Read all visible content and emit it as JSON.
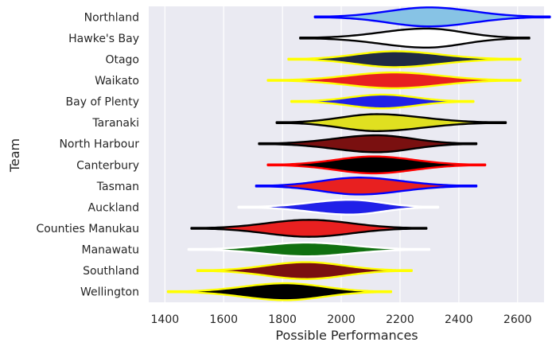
{
  "chart_data": {
    "type": "violin",
    "title": "",
    "xlabel": "Possible Performances",
    "ylabel": "Team",
    "xlim": [
      1345,
      2690
    ],
    "xticks": [
      1400,
      1600,
      1800,
      2000,
      2200,
      2400,
      2600
    ],
    "grid": true,
    "background_color": "#eaeaf2",
    "categories": [
      "Northland",
      "Hawke's Bay",
      "Otago",
      "Waikato",
      "Bay of Plenty",
      "Taranaki",
      "North Harbour",
      "Canterbury",
      "Tasman",
      "Auckland",
      "Counties Manukau",
      "Manawatu",
      "Southland",
      "Wellington"
    ],
    "series": [
      {
        "team": "Northland",
        "min": 1910,
        "max": 2710,
        "center": 2300,
        "width": 0.9,
        "fill": "#87c3e5",
        "edge": "#0000ff"
      },
      {
        "team": "Hawke's Bay",
        "min": 1860,
        "max": 2640,
        "center": 2290,
        "width": 0.9,
        "fill": "#ffffff",
        "edge": "#000000"
      },
      {
        "team": "Otago",
        "min": 1820,
        "max": 2610,
        "center": 2180,
        "width": 0.75,
        "fill": "#1f2a44",
        "edge": "#ffff00"
      },
      {
        "team": "Waikato",
        "min": 1750,
        "max": 2610,
        "center": 2180,
        "width": 0.75,
        "fill": "#e82020",
        "edge": "#ffff00"
      },
      {
        "team": "Bay of Plenty",
        "min": 1830,
        "max": 2450,
        "center": 2140,
        "width": 0.65,
        "fill": "#2020e8",
        "edge": "#ffff00"
      },
      {
        "team": "Taranaki",
        "min": 1780,
        "max": 2560,
        "center": 2120,
        "width": 0.8,
        "fill": "#e0e020",
        "edge": "#000000"
      },
      {
        "team": "North Harbour",
        "min": 1720,
        "max": 2460,
        "center": 2120,
        "width": 0.8,
        "fill": "#7a1010",
        "edge": "#000000"
      },
      {
        "team": "Canterbury",
        "min": 1750,
        "max": 2490,
        "center": 2110,
        "width": 0.8,
        "fill": "#000000",
        "edge": "#ff0000"
      },
      {
        "team": "Tasman",
        "min": 1710,
        "max": 2460,
        "center": 2060,
        "width": 0.8,
        "fill": "#e82020",
        "edge": "#0000ff"
      },
      {
        "team": "Auckland",
        "min": 1650,
        "max": 2330,
        "center": 2030,
        "width": 0.7,
        "fill": "#2020e8",
        "edge": "#ffffff"
      },
      {
        "team": "Counties Manukau",
        "min": 1490,
        "max": 2290,
        "center": 1890,
        "width": 0.8,
        "fill": "#e82020",
        "edge": "#000000"
      },
      {
        "team": "Manawatu",
        "min": 1480,
        "max": 2300,
        "center": 1880,
        "width": 0.65,
        "fill": "#107010",
        "edge": "#ffffff"
      },
      {
        "team": "Southland",
        "min": 1510,
        "max": 2240,
        "center": 1880,
        "width": 0.8,
        "fill": "#7a1010",
        "edge": "#ffff00"
      },
      {
        "team": "Wellington",
        "min": 1410,
        "max": 2170,
        "center": 1810,
        "width": 0.8,
        "fill": "#000000",
        "edge": "#ffff00"
      }
    ]
  }
}
